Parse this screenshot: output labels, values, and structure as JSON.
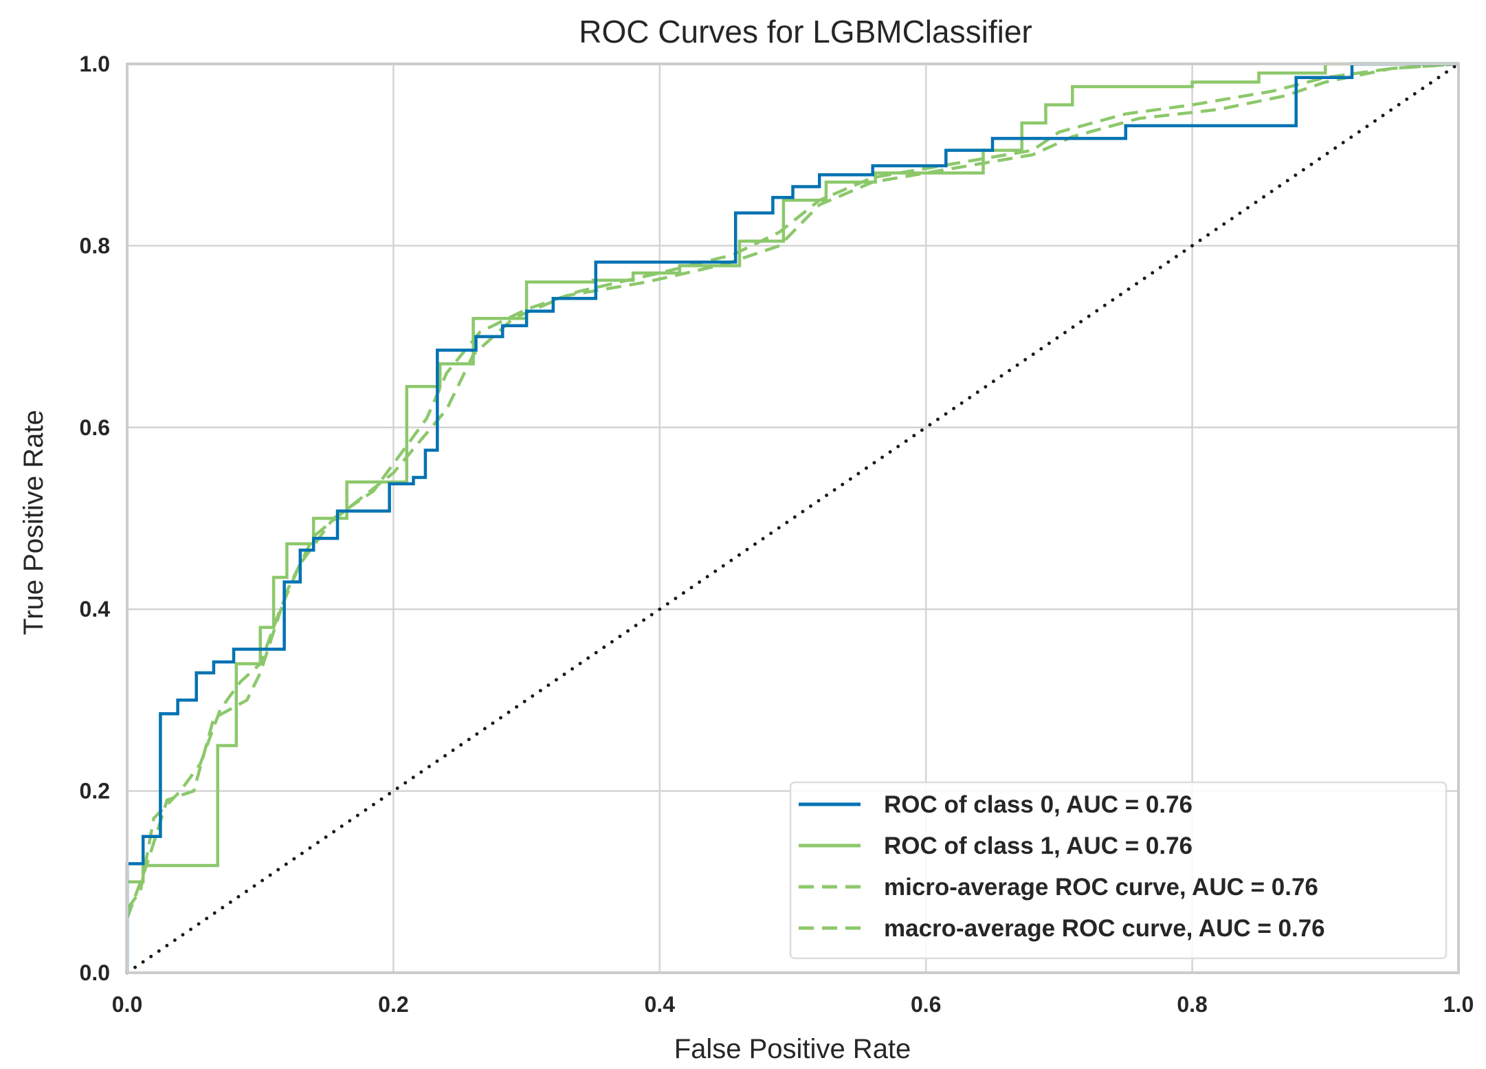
{
  "chart_data": {
    "type": "line",
    "title": "ROC Curves for LGBMClassifier",
    "xlabel": "False Positive Rate",
    "ylabel": "True Positive Rate",
    "xlim": [
      0,
      1
    ],
    "ylim": [
      0,
      1
    ],
    "xticks": [
      "0.0",
      "0.2",
      "0.4",
      "0.6",
      "0.8",
      "1.0"
    ],
    "yticks": [
      "0.0",
      "0.2",
      "0.4",
      "0.6",
      "0.8",
      "1.0"
    ],
    "grid": true,
    "legend_position": "bottom-right",
    "colors": {
      "class0": "#0072b2",
      "green": "#8cc86b",
      "diagonal": "#1a1a1a",
      "grid": "#d4d4d4",
      "frame": "#cccccc"
    },
    "series": [
      {
        "name": "ROC of class 0, AUC = 0.76",
        "style": "solid",
        "color": "#0072b2",
        "points": [
          [
            0,
            0
          ],
          [
            0,
            0.12
          ],
          [
            0.012,
            0.12
          ],
          [
            0.012,
            0.15
          ],
          [
            0.025,
            0.15
          ],
          [
            0.025,
            0.285
          ],
          [
            0.038,
            0.285
          ],
          [
            0.038,
            0.3
          ],
          [
            0.052,
            0.3
          ],
          [
            0.052,
            0.33
          ],
          [
            0.065,
            0.33
          ],
          [
            0.065,
            0.342
          ],
          [
            0.08,
            0.342
          ],
          [
            0.08,
            0.356
          ],
          [
            0.118,
            0.356
          ],
          [
            0.118,
            0.43
          ],
          [
            0.13,
            0.43
          ],
          [
            0.13,
            0.465
          ],
          [
            0.14,
            0.465
          ],
          [
            0.14,
            0.478
          ],
          [
            0.158,
            0.478
          ],
          [
            0.158,
            0.508
          ],
          [
            0.197,
            0.508
          ],
          [
            0.197,
            0.538
          ],
          [
            0.215,
            0.538
          ],
          [
            0.215,
            0.545
          ],
          [
            0.224,
            0.545
          ],
          [
            0.224,
            0.575
          ],
          [
            0.233,
            0.575
          ],
          [
            0.233,
            0.685
          ],
          [
            0.262,
            0.685
          ],
          [
            0.262,
            0.7
          ],
          [
            0.282,
            0.7
          ],
          [
            0.282,
            0.712
          ],
          [
            0.3,
            0.712
          ],
          [
            0.3,
            0.728
          ],
          [
            0.32,
            0.728
          ],
          [
            0.32,
            0.742
          ],
          [
            0.352,
            0.742
          ],
          [
            0.352,
            0.782
          ],
          [
            0.457,
            0.782
          ],
          [
            0.457,
            0.836
          ],
          [
            0.485,
            0.836
          ],
          [
            0.485,
            0.853
          ],
          [
            0.5,
            0.853
          ],
          [
            0.5,
            0.865
          ],
          [
            0.52,
            0.865
          ],
          [
            0.52,
            0.878
          ],
          [
            0.56,
            0.878
          ],
          [
            0.56,
            0.888
          ],
          [
            0.615,
            0.888
          ],
          [
            0.615,
            0.905
          ],
          [
            0.65,
            0.905
          ],
          [
            0.65,
            0.918
          ],
          [
            0.75,
            0.918
          ],
          [
            0.75,
            0.932
          ],
          [
            0.878,
            0.932
          ],
          [
            0.878,
            0.985
          ],
          [
            0.92,
            0.985
          ],
          [
            0.92,
            1
          ],
          [
            1,
            1
          ]
        ]
      },
      {
        "name": "ROC of class 1, AUC = 0.76",
        "style": "solid",
        "color": "#8cc86b",
        "points": [
          [
            0,
            0.1
          ],
          [
            0.012,
            0.1
          ],
          [
            0.012,
            0.118
          ],
          [
            0.068,
            0.118
          ],
          [
            0.068,
            0.25
          ],
          [
            0.082,
            0.25
          ],
          [
            0.082,
            0.34
          ],
          [
            0.1,
            0.34
          ],
          [
            0.1,
            0.38
          ],
          [
            0.11,
            0.38
          ],
          [
            0.11,
            0.435
          ],
          [
            0.12,
            0.435
          ],
          [
            0.12,
            0.472
          ],
          [
            0.14,
            0.472
          ],
          [
            0.14,
            0.5
          ],
          [
            0.165,
            0.5
          ],
          [
            0.165,
            0.54
          ],
          [
            0.21,
            0.54
          ],
          [
            0.21,
            0.645
          ],
          [
            0.235,
            0.645
          ],
          [
            0.235,
            0.67
          ],
          [
            0.26,
            0.67
          ],
          [
            0.26,
            0.72
          ],
          [
            0.3,
            0.72
          ],
          [
            0.3,
            0.76
          ],
          [
            0.35,
            0.76
          ],
          [
            0.35,
            0.762
          ],
          [
            0.38,
            0.762
          ],
          [
            0.38,
            0.77
          ],
          [
            0.415,
            0.77
          ],
          [
            0.415,
            0.778
          ],
          [
            0.46,
            0.778
          ],
          [
            0.46,
            0.805
          ],
          [
            0.493,
            0.805
          ],
          [
            0.493,
            0.85
          ],
          [
            0.525,
            0.85
          ],
          [
            0.525,
            0.87
          ],
          [
            0.562,
            0.87
          ],
          [
            0.562,
            0.88
          ],
          [
            0.643,
            0.88
          ],
          [
            0.643,
            0.905
          ],
          [
            0.672,
            0.905
          ],
          [
            0.672,
            0.935
          ],
          [
            0.69,
            0.935
          ],
          [
            0.69,
            0.955
          ],
          [
            0.71,
            0.955
          ],
          [
            0.71,
            0.975
          ],
          [
            0.8,
            0.975
          ],
          [
            0.8,
            0.98
          ],
          [
            0.85,
            0.98
          ],
          [
            0.85,
            0.99
          ],
          [
            0.9,
            0.99
          ],
          [
            0.9,
            1
          ],
          [
            1,
            1
          ]
        ]
      },
      {
        "name": "micro-average ROC curve, AUC = 0.76",
        "style": "dashed",
        "color": "#8cc86b",
        "points": [
          [
            0,
            0.07
          ],
          [
            0.01,
            0.09
          ],
          [
            0.02,
            0.17
          ],
          [
            0.04,
            0.2
          ],
          [
            0.055,
            0.23
          ],
          [
            0.07,
            0.29
          ],
          [
            0.085,
            0.32
          ],
          [
            0.1,
            0.34
          ],
          [
            0.115,
            0.4
          ],
          [
            0.13,
            0.45
          ],
          [
            0.155,
            0.5
          ],
          [
            0.185,
            0.53
          ],
          [
            0.21,
            0.58
          ],
          [
            0.225,
            0.61
          ],
          [
            0.24,
            0.66
          ],
          [
            0.265,
            0.705
          ],
          [
            0.3,
            0.73
          ],
          [
            0.34,
            0.75
          ],
          [
            0.4,
            0.77
          ],
          [
            0.455,
            0.79
          ],
          [
            0.49,
            0.815
          ],
          [
            0.52,
            0.85
          ],
          [
            0.56,
            0.875
          ],
          [
            0.62,
            0.89
          ],
          [
            0.68,
            0.905
          ],
          [
            0.7,
            0.925
          ],
          [
            0.75,
            0.945
          ],
          [
            0.8,
            0.955
          ],
          [
            0.86,
            0.97
          ],
          [
            0.9,
            0.985
          ],
          [
            0.95,
            0.995
          ],
          [
            1,
            1
          ]
        ]
      },
      {
        "name": "macro-average ROC curve, AUC = 0.76",
        "style": "dashed",
        "color": "#8cc86b",
        "points": [
          [
            0,
            0.06
          ],
          [
            0.015,
            0.12
          ],
          [
            0.03,
            0.19
          ],
          [
            0.05,
            0.2
          ],
          [
            0.065,
            0.28
          ],
          [
            0.09,
            0.3
          ],
          [
            0.1,
            0.33
          ],
          [
            0.12,
            0.42
          ],
          [
            0.14,
            0.48
          ],
          [
            0.165,
            0.51
          ],
          [
            0.2,
            0.55
          ],
          [
            0.22,
            0.585
          ],
          [
            0.24,
            0.62
          ],
          [
            0.26,
            0.68
          ],
          [
            0.29,
            0.72
          ],
          [
            0.33,
            0.745
          ],
          [
            0.39,
            0.76
          ],
          [
            0.45,
            0.78
          ],
          [
            0.49,
            0.8
          ],
          [
            0.52,
            0.845
          ],
          [
            0.56,
            0.87
          ],
          [
            0.62,
            0.885
          ],
          [
            0.68,
            0.9
          ],
          [
            0.71,
            0.92
          ],
          [
            0.76,
            0.94
          ],
          [
            0.82,
            0.95
          ],
          [
            0.87,
            0.965
          ],
          [
            0.9,
            0.98
          ],
          [
            0.95,
            0.995
          ],
          [
            1,
            1
          ]
        ]
      },
      {
        "name": "chance",
        "style": "dotted",
        "color": "#1a1a1a",
        "points": [
          [
            0,
            0
          ],
          [
            1,
            1
          ]
        ]
      }
    ]
  }
}
